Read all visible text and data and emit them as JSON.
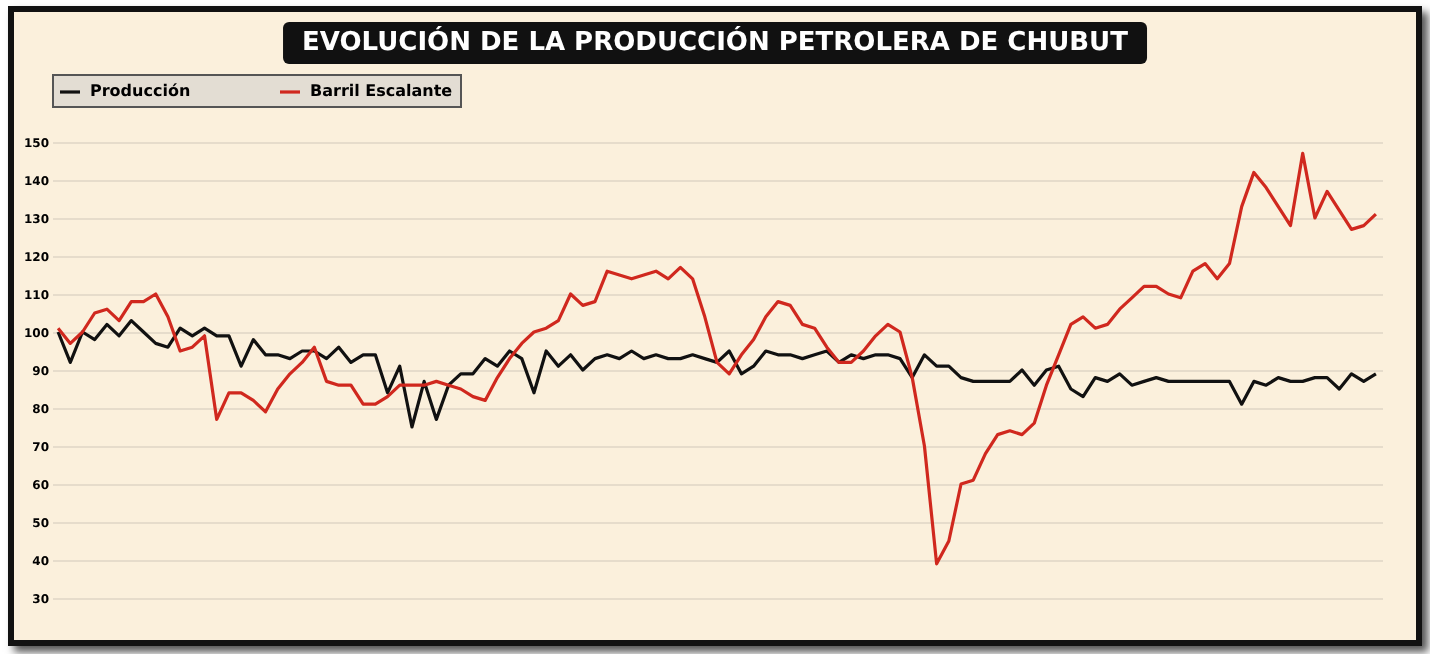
{
  "chart_data": {
    "type": "line",
    "title": "EVOLUCIÓN DE LA PRODUCCIÓN PETROLERA DE CHUBUT",
    "categories": [
      null,
      null,
      null,
      null,
      null,
      null,
      null,
      null,
      null,
      null,
      null,
      null,
      null,
      null,
      null,
      null,
      null,
      null,
      null,
      null,
      null,
      null,
      null,
      null,
      null,
      null,
      null,
      null,
      null,
      null,
      null,
      null,
      null,
      null,
      null,
      null,
      null,
      null,
      null,
      null,
      null,
      null,
      null,
      null,
      null,
      null,
      null,
      null,
      null,
      null,
      null,
      null,
      null,
      null,
      null,
      null,
      null,
      null,
      null,
      null,
      null,
      null,
      null,
      null,
      null,
      null,
      null,
      null,
      null,
      null,
      null,
      null,
      null,
      null,
      null,
      null,
      null,
      null,
      null,
      null,
      null,
      null,
      null,
      null,
      null,
      null,
      null,
      null,
      null,
      null,
      null,
      null,
      null,
      null,
      null,
      null,
      null,
      null,
      null,
      null,
      null,
      null,
      null,
      null,
      null,
      null,
      null,
      null,
      null
    ],
    "series": [
      {
        "name": "Producción",
        "color": "#111111",
        "values": [
          100,
          92,
          100,
          98,
          102,
          99,
          103,
          100,
          97,
          96,
          101,
          99,
          101,
          99,
          99,
          91,
          98,
          94,
          94,
          93,
          95,
          95,
          93,
          96,
          92,
          94,
          94,
          84,
          91,
          75,
          87,
          77,
          86,
          89,
          89,
          93,
          91,
          95,
          93,
          84,
          95,
          91,
          94,
          90,
          93,
          94,
          93,
          95,
          93,
          94,
          93,
          93,
          94,
          93,
          92,
          95,
          89,
          91,
          95,
          94,
          94,
          93,
          94,
          95,
          92,
          94,
          93,
          94,
          94,
          93,
          88,
          94,
          91,
          91,
          88,
          87,
          87,
          87,
          87,
          90,
          86,
          90,
          91,
          85,
          83,
          88,
          87,
          89,
          86,
          87,
          88,
          87,
          87,
          87,
          87,
          87,
          87,
          81,
          87,
          86,
          88,
          87,
          87,
          88,
          88,
          85,
          89,
          87,
          89
        ]
      },
      {
        "name": "Barril Escalante",
        "color": "#d0281e",
        "values": [
          101,
          97,
          100,
          105,
          106,
          103,
          108,
          108,
          110,
          104,
          95,
          96,
          99,
          77,
          84,
          84,
          82,
          79,
          85,
          89,
          92,
          96,
          87,
          86,
          86,
          81,
          81,
          83,
          86,
          86,
          86,
          87,
          86,
          85,
          83,
          82,
          88,
          93,
          97,
          100,
          101,
          103,
          110,
          107,
          108,
          116,
          115,
          114,
          115,
          116,
          114,
          117,
          114,
          104,
          92,
          89,
          94,
          98,
          104,
          108,
          107,
          102,
          101,
          96,
          92,
          92,
          95,
          99,
          102,
          100,
          88,
          70,
          39,
          45,
          60,
          61,
          68,
          73,
          74,
          73,
          76,
          86,
          94,
          102,
          104,
          101,
          102,
          106,
          109,
          112,
          112,
          110,
          109,
          116,
          118,
          114,
          118,
          133,
          142,
          138,
          133,
          128,
          147,
          130,
          137,
          132,
          127,
          128,
          131
        ]
      }
    ],
    "ylim": [
      30,
      150
    ],
    "yticks": [
      30,
      40,
      50,
      60,
      70,
      80,
      90,
      100,
      110,
      120,
      130,
      140,
      150
    ],
    "grid": "y",
    "legend": "top"
  }
}
